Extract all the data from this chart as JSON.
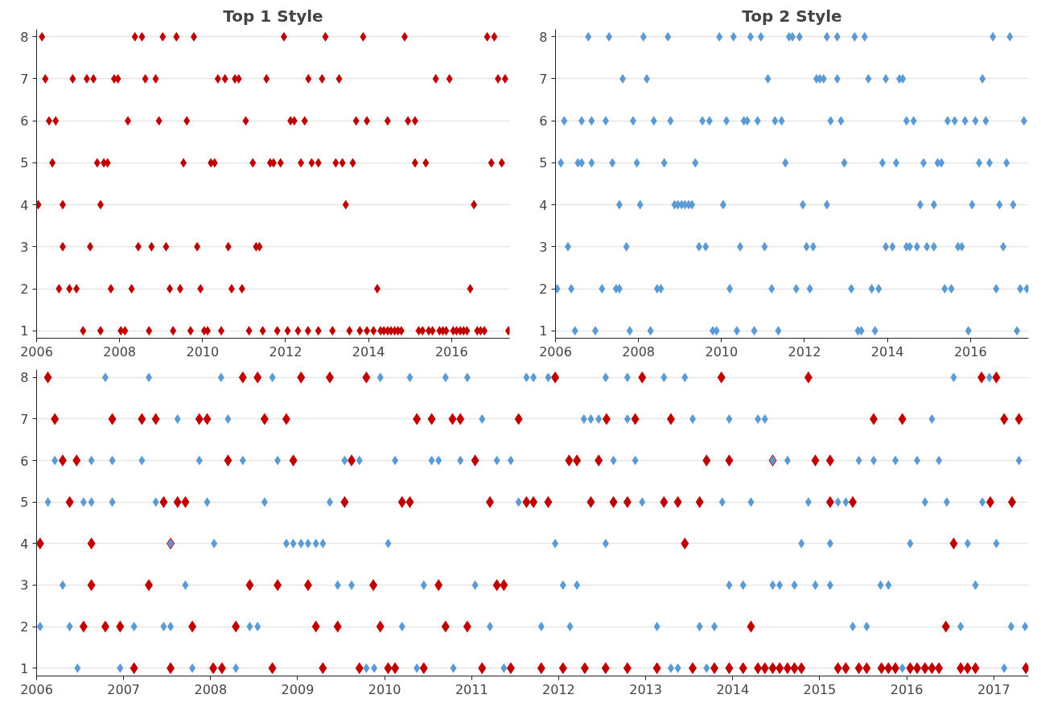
{
  "chart_data": [
    {
      "type": "scatter",
      "title": "Top 1 Style",
      "xlim": [
        2006,
        2017.4
      ],
      "xticks": [
        2006,
        2008,
        2010,
        2012,
        2014,
        2016
      ],
      "ylim": [
        1,
        8
      ],
      "yticks": [
        1,
        2,
        3,
        4,
        5,
        6,
        7,
        8
      ],
      "grid": "y",
      "marker": "diamond",
      "series": [
        {
          "color": "#c00000",
          "x": [
            2006.13,
            2008.37,
            2008.54,
            2009.04,
            2009.37,
            2009.79,
            2011.96,
            2012.96,
            2013.87,
            2014.87,
            2016.86,
            2017.03,
            2006.21,
            2006.87,
            2007.21,
            2007.37,
            2007.87,
            2007.96,
            2008.62,
            2008.87,
            2010.37,
            2010.54,
            2010.78,
            2010.87,
            2011.54,
            2012.55,
            2012.88,
            2013.29,
            2015.62,
            2015.95,
            2017.12,
            2017.29,
            2006.3,
            2006.46,
            2008.2,
            2008.95,
            2009.62,
            2011.04,
            2012.12,
            2012.21,
            2012.46,
            2013.7,
            2013.96,
            2014.46,
            2014.95,
            2015.12,
            2006.38,
            2007.46,
            2007.62,
            2007.71,
            2009.54,
            2010.2,
            2010.29,
            2011.21,
            2011.63,
            2011.71,
            2011.88,
            2012.37,
            2012.63,
            2012.79,
            2013.21,
            2013.37,
            2013.62,
            2015.12,
            2015.38,
            2016.96,
            2017.21,
            2006.04,
            2006.63,
            2007.54,
            2013.45,
            2016.54,
            2006.63,
            2007.29,
            2008.45,
            2008.77,
            2009.12,
            2009.87,
            2010.62,
            2011.29,
            2011.37,
            2006.54,
            2006.79,
            2006.96,
            2007.79,
            2008.29,
            2009.21,
            2009.46,
            2009.95,
            2010.7,
            2010.95,
            2014.21,
            2016.45,
            2007.12,
            2007.54,
            2008.03,
            2008.13,
            2008.71,
            2009.29,
            2009.71,
            2010.04,
            2010.12,
            2010.45,
            2011.12,
            2011.45,
            2011.8,
            2012.05,
            2012.3,
            2012.54,
            2012.79,
            2013.13,
            2013.54,
            2013.79,
            2013.96,
            2014.12,
            2014.29,
            2014.37,
            2014.46,
            2014.54,
            2014.63,
            2014.71,
            2014.79,
            2015.21,
            2015.3,
            2015.45,
            2015.54,
            2015.71,
            2015.79,
            2015.87,
            2016.04,
            2016.12,
            2016.21,
            2016.29,
            2016.37,
            2016.62,
            2016.7,
            2016.79,
            2017.37
          ],
          "values": [
            8,
            8,
            8,
            8,
            8,
            8,
            8,
            8,
            8,
            8,
            8,
            8,
            7,
            7,
            7,
            7,
            7,
            7,
            7,
            7,
            7,
            7,
            7,
            7,
            7,
            7,
            7,
            7,
            7,
            7,
            7,
            7,
            6,
            6,
            6,
            6,
            6,
            6,
            6,
            6,
            6,
            6,
            6,
            6,
            6,
            6,
            5,
            5,
            5,
            5,
            5,
            5,
            5,
            5,
            5,
            5,
            5,
            5,
            5,
            5,
            5,
            5,
            5,
            5,
            5,
            5,
            5,
            4,
            4,
            4,
            4,
            4,
            3,
            3,
            3,
            3,
            3,
            3,
            3,
            3,
            3,
            2,
            2,
            2,
            2,
            2,
            2,
            2,
            2,
            2,
            2,
            2,
            2,
            1,
            1,
            1,
            1,
            1,
            1,
            1,
            1,
            1,
            1,
            1,
            1,
            1,
            1,
            1,
            1,
            1,
            1,
            1,
            1,
            1,
            1,
            1,
            1,
            1,
            1,
            1,
            1,
            1,
            1,
            1,
            1,
            1,
            1,
            1,
            1,
            1,
            1,
            1,
            1,
            1,
            1,
            1,
            1,
            1
          ]
        }
      ]
    },
    {
      "type": "scatter",
      "title": "Top 2 Style",
      "xlim": [
        2006,
        2017.4
      ],
      "xticks": [
        2006,
        2008,
        2010,
        2012,
        2014,
        2016
      ],
      "ylim": [
        1,
        8
      ],
      "yticks": [
        1,
        2,
        3,
        4,
        5,
        6,
        7,
        8
      ],
      "grid": "y",
      "marker": "diamond",
      "series": [
        {
          "color": "#5b9bd5",
          "x": [
            2006.79,
            2007.29,
            2008.12,
            2008.71,
            2009.95,
            2010.29,
            2010.7,
            2010.95,
            2011.63,
            2011.71,
            2011.88,
            2012.54,
            2012.79,
            2013.21,
            2013.45,
            2016.54,
            2016.95,
            2007.62,
            2008.2,
            2011.12,
            2012.29,
            2012.37,
            2012.46,
            2012.79,
            2013.54,
            2013.96,
            2014.29,
            2014.37,
            2016.29,
            2006.21,
            2006.63,
            2006.87,
            2007.21,
            2007.87,
            2008.37,
            2008.77,
            2009.54,
            2009.71,
            2010.12,
            2010.54,
            2010.62,
            2010.87,
            2011.29,
            2011.45,
            2012.63,
            2012.88,
            2014.46,
            2014.63,
            2015.45,
            2015.62,
            2015.87,
            2016.12,
            2016.37,
            2017.29,
            2006.13,
            2006.54,
            2006.63,
            2006.87,
            2007.37,
            2007.96,
            2008.62,
            2009.37,
            2011.54,
            2012.96,
            2013.88,
            2014.21,
            2014.87,
            2015.21,
            2015.3,
            2016.21,
            2016.46,
            2016.87,
            2007.54,
            2008.04,
            2008.87,
            2008.95,
            2009.04,
            2009.12,
            2009.21,
            2009.29,
            2010.04,
            2011.96,
            2012.54,
            2014.79,
            2015.12,
            2016.04,
            2016.7,
            2017.03,
            2006.3,
            2007.71,
            2009.46,
            2009.62,
            2010.45,
            2011.04,
            2012.05,
            2012.21,
            2013.96,
            2014.12,
            2014.46,
            2014.54,
            2014.71,
            2014.95,
            2015.12,
            2015.7,
            2015.79,
            2016.79,
            2006.04,
            2006.38,
            2007.12,
            2007.46,
            2007.54,
            2008.45,
            2008.54,
            2010.2,
            2011.21,
            2011.8,
            2012.13,
            2013.13,
            2013.62,
            2013.79,
            2015.38,
            2015.54,
            2016.62,
            2017.2,
            2017.36,
            2006.47,
            2006.96,
            2007.79,
            2008.29,
            2009.79,
            2009.88,
            2010.37,
            2010.79,
            2011.37,
            2013.29,
            2013.37,
            2013.7,
            2015.95,
            2017.12
          ],
          "values": [
            8,
            8,
            8,
            8,
            8,
            8,
            8,
            8,
            8,
            8,
            8,
            8,
            8,
            8,
            8,
            8,
            8,
            7,
            7,
            7,
            7,
            7,
            7,
            7,
            7,
            7,
            7,
            7,
            7,
            6,
            6,
            6,
            6,
            6,
            6,
            6,
            6,
            6,
            6,
            6,
            6,
            6,
            6,
            6,
            6,
            6,
            6,
            6,
            6,
            6,
            6,
            6,
            6,
            6,
            5,
            5,
            5,
            5,
            5,
            5,
            5,
            5,
            5,
            5,
            5,
            5,
            5,
            5,
            5,
            5,
            5,
            5,
            4,
            4,
            4,
            4,
            4,
            4,
            4,
            4,
            4,
            4,
            4,
            4,
            4,
            4,
            4,
            4,
            3,
            3,
            3,
            3,
            3,
            3,
            3,
            3,
            3,
            3,
            3,
            3,
            3,
            3,
            3,
            3,
            3,
            3,
            2,
            2,
            2,
            2,
            2,
            2,
            2,
            2,
            2,
            2,
            2,
            2,
            2,
            2,
            2,
            2,
            2,
            2,
            2,
            1,
            1,
            1,
            1,
            1,
            1,
            1,
            1,
            1,
            1,
            1,
            1,
            1,
            1
          ]
        }
      ]
    },
    {
      "type": "scatter",
      "xlim": [
        2006,
        2017.4
      ],
      "xticks": [
        2006,
        2007,
        2008,
        2009,
        2010,
        2011,
        2012,
        2013,
        2014,
        2015,
        2016,
        2017
      ],
      "ylim": [
        1,
        8
      ],
      "yticks": [
        1,
        2,
        3,
        4,
        5,
        6,
        7,
        8
      ],
      "grid": "y",
      "marker": "diamond",
      "series": [
        {
          "color": "#5b9bd5",
          "x": [
            2006.79,
            2007.29,
            2008.12,
            2008.71,
            2009.95,
            2010.29,
            2010.7,
            2010.95,
            2011.63,
            2011.71,
            2011.88,
            2012.54,
            2012.79,
            2013.21,
            2013.45,
            2016.54,
            2016.95,
            2007.62,
            2008.2,
            2011.12,
            2012.29,
            2012.37,
            2012.46,
            2012.79,
            2013.54,
            2013.96,
            2014.29,
            2014.37,
            2016.29,
            2006.21,
            2006.63,
            2006.87,
            2007.21,
            2007.87,
            2008.37,
            2008.77,
            2009.54,
            2009.71,
            2010.12,
            2010.54,
            2010.62,
            2010.87,
            2011.29,
            2011.45,
            2012.63,
            2012.88,
            2014.46,
            2014.63,
            2015.45,
            2015.62,
            2015.87,
            2016.12,
            2016.37,
            2017.29,
            2006.13,
            2006.54,
            2006.63,
            2006.87,
            2007.37,
            2007.96,
            2008.62,
            2009.37,
            2011.54,
            2012.96,
            2013.88,
            2014.21,
            2014.87,
            2015.21,
            2015.3,
            2016.21,
            2016.46,
            2016.87,
            2007.54,
            2008.04,
            2008.87,
            2008.95,
            2009.04,
            2009.12,
            2009.21,
            2009.29,
            2010.04,
            2011.96,
            2012.54,
            2014.79,
            2015.12,
            2016.04,
            2016.7,
            2017.03,
            2006.3,
            2007.71,
            2009.46,
            2009.62,
            2010.45,
            2011.04,
            2012.05,
            2012.21,
            2013.96,
            2014.12,
            2014.46,
            2014.54,
            2014.71,
            2014.95,
            2015.12,
            2015.7,
            2015.79,
            2016.79,
            2006.04,
            2006.38,
            2007.12,
            2007.46,
            2007.54,
            2008.45,
            2008.54,
            2010.2,
            2011.21,
            2011.8,
            2012.13,
            2013.13,
            2013.62,
            2013.79,
            2015.38,
            2015.54,
            2016.62,
            2017.2,
            2017.36,
            2006.47,
            2006.96,
            2007.79,
            2008.29,
            2009.79,
            2009.88,
            2010.37,
            2010.79,
            2011.37,
            2013.29,
            2013.37,
            2013.7,
            2015.95,
            2017.12
          ],
          "values": [
            8,
            8,
            8,
            8,
            8,
            8,
            8,
            8,
            8,
            8,
            8,
            8,
            8,
            8,
            8,
            8,
            8,
            7,
            7,
            7,
            7,
            7,
            7,
            7,
            7,
            7,
            7,
            7,
            7,
            6,
            6,
            6,
            6,
            6,
            6,
            6,
            6,
            6,
            6,
            6,
            6,
            6,
            6,
            6,
            6,
            6,
            6,
            6,
            6,
            6,
            6,
            6,
            6,
            6,
            5,
            5,
            5,
            5,
            5,
            5,
            5,
            5,
            5,
            5,
            5,
            5,
            5,
            5,
            5,
            5,
            5,
            5,
            4,
            4,
            4,
            4,
            4,
            4,
            4,
            4,
            4,
            4,
            4,
            4,
            4,
            4,
            4,
            4,
            3,
            3,
            3,
            3,
            3,
            3,
            3,
            3,
            3,
            3,
            3,
            3,
            3,
            3,
            3,
            3,
            3,
            3,
            2,
            2,
            2,
            2,
            2,
            2,
            2,
            2,
            2,
            2,
            2,
            2,
            2,
            2,
            2,
            2,
            2,
            2,
            2,
            1,
            1,
            1,
            1,
            1,
            1,
            1,
            1,
            1,
            1,
            1,
            1,
            1,
            1
          ]
        },
        {
          "color": "#c00000",
          "x": [
            2006.13,
            2008.37,
            2008.54,
            2009.04,
            2009.37,
            2009.79,
            2011.96,
            2012.96,
            2013.87,
            2014.87,
            2016.86,
            2017.03,
            2006.21,
            2006.87,
            2007.21,
            2007.37,
            2007.87,
            2007.96,
            2008.62,
            2008.87,
            2010.37,
            2010.54,
            2010.78,
            2010.87,
            2011.54,
            2012.55,
            2012.88,
            2013.29,
            2015.62,
            2015.95,
            2017.12,
            2017.29,
            2006.3,
            2006.46,
            2008.2,
            2008.95,
            2009.62,
            2011.04,
            2012.12,
            2012.21,
            2012.46,
            2013.7,
            2013.96,
            2014.46,
            2014.95,
            2015.12,
            2006.38,
            2007.46,
            2007.62,
            2007.71,
            2009.54,
            2010.2,
            2010.29,
            2011.21,
            2011.63,
            2011.71,
            2011.88,
            2012.37,
            2012.63,
            2012.79,
            2013.21,
            2013.37,
            2013.62,
            2015.12,
            2015.38,
            2016.96,
            2017.21,
            2006.04,
            2006.63,
            2007.54,
            2013.45,
            2016.54,
            2006.63,
            2007.29,
            2008.45,
            2008.77,
            2009.12,
            2009.87,
            2010.62,
            2011.29,
            2011.37,
            2006.54,
            2006.79,
            2006.96,
            2007.79,
            2008.29,
            2009.21,
            2009.46,
            2009.95,
            2010.7,
            2010.95,
            2014.21,
            2016.45,
            2007.12,
            2007.54,
            2008.03,
            2008.13,
            2008.71,
            2009.29,
            2009.71,
            2010.04,
            2010.12,
            2010.45,
            2011.12,
            2011.45,
            2011.8,
            2012.05,
            2012.3,
            2012.54,
            2012.79,
            2013.13,
            2013.54,
            2013.79,
            2013.96,
            2014.12,
            2014.29,
            2014.37,
            2014.46,
            2014.54,
            2014.63,
            2014.71,
            2014.79,
            2015.21,
            2015.3,
            2015.45,
            2015.54,
            2015.71,
            2015.79,
            2015.87,
            2016.04,
            2016.12,
            2016.21,
            2016.29,
            2016.37,
            2016.62,
            2016.7,
            2016.79,
            2017.37
          ],
          "values": [
            8,
            8,
            8,
            8,
            8,
            8,
            8,
            8,
            8,
            8,
            8,
            8,
            7,
            7,
            7,
            7,
            7,
            7,
            7,
            7,
            7,
            7,
            7,
            7,
            7,
            7,
            7,
            7,
            7,
            7,
            7,
            7,
            6,
            6,
            6,
            6,
            6,
            6,
            6,
            6,
            6,
            6,
            6,
            6,
            6,
            6,
            5,
            5,
            5,
            5,
            5,
            5,
            5,
            5,
            5,
            5,
            5,
            5,
            5,
            5,
            5,
            5,
            5,
            5,
            5,
            5,
            5,
            4,
            4,
            4,
            4,
            4,
            3,
            3,
            3,
            3,
            3,
            3,
            3,
            3,
            3,
            2,
            2,
            2,
            2,
            2,
            2,
            2,
            2,
            2,
            2,
            2,
            2,
            1,
            1,
            1,
            1,
            1,
            1,
            1,
            1,
            1,
            1,
            1,
            1,
            1,
            1,
            1,
            1,
            1,
            1,
            1,
            1,
            1,
            1,
            1,
            1,
            1,
            1,
            1,
            1,
            1,
            1,
            1,
            1,
            1,
            1,
            1,
            1,
            1,
            1,
            1,
            1,
            1,
            1,
            1,
            1,
            1
          ]
        }
      ]
    }
  ]
}
